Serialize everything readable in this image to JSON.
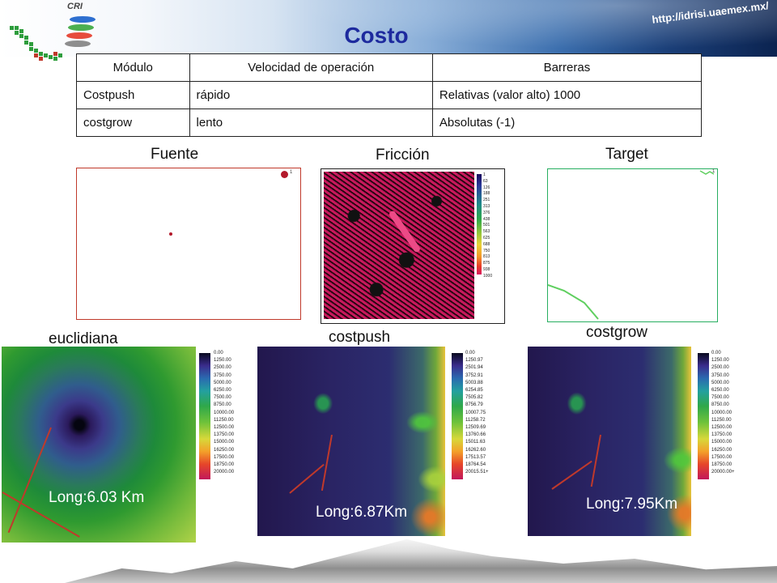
{
  "header": {
    "url": "http://idrisi.uaemex.mx/",
    "logo_text": "CRI",
    "title": "Costo"
  },
  "table": {
    "headers": [
      "Módulo",
      "Velocidad de operación",
      "Barreras"
    ],
    "rows": [
      [
        "Costpush",
        "rápido",
        "Relativas (valor alto) 1000"
      ],
      [
        "costgrow",
        "lento",
        "Absolutas (-1)"
      ]
    ]
  },
  "panels": {
    "fuente": {
      "label": "Fuente",
      "marker": "1"
    },
    "friccion": {
      "label": "Fricción",
      "legend": [
        "1",
        "63",
        "126",
        "188",
        "251",
        "313",
        "376",
        "438",
        "501",
        "563",
        "625",
        "688",
        "750",
        "813",
        "875",
        "938",
        "1000"
      ]
    },
    "target": {
      "label": "Target",
      "marker": "1"
    }
  },
  "results": {
    "euclidiana": {
      "label": "euclidiana",
      "long": "Long:6.03 Km",
      "legend": [
        "0.00",
        "1250.00",
        "2500.00",
        "3750.00",
        "5000.00",
        "6250.00",
        "7500.00",
        "8750.00",
        "10000.00",
        "11250.00",
        "12500.00",
        "13750.00",
        "15000.00",
        "16250.00",
        "17500.00",
        "18750.00",
        "20000.00"
      ]
    },
    "costpush": {
      "label": "costpush",
      "long": "Long:6.87Km",
      "legend": [
        "0.00",
        "1250.97",
        "2501.94",
        "3752.91",
        "5003.88",
        "6254.85",
        "7505.82",
        "8756.79",
        "10007.75",
        "11258.72",
        "12509.69",
        "13760.66",
        "15011.63",
        "16262.60",
        "17513.57",
        "18764.54",
        "20015.51+"
      ]
    },
    "costgrow": {
      "label": "costgrow",
      "long": "Long:7.95Km",
      "legend": [
        "0.00",
        "1250.00",
        "2500.00",
        "3750.00",
        "5000.00",
        "6250.00",
        "7500.00",
        "8750.00",
        "10000.00",
        "11250.00",
        "12500.00",
        "13750.00",
        "15000.00",
        "16250.00",
        "17500.00",
        "18750.00",
        "20000.00+"
      ]
    }
  }
}
